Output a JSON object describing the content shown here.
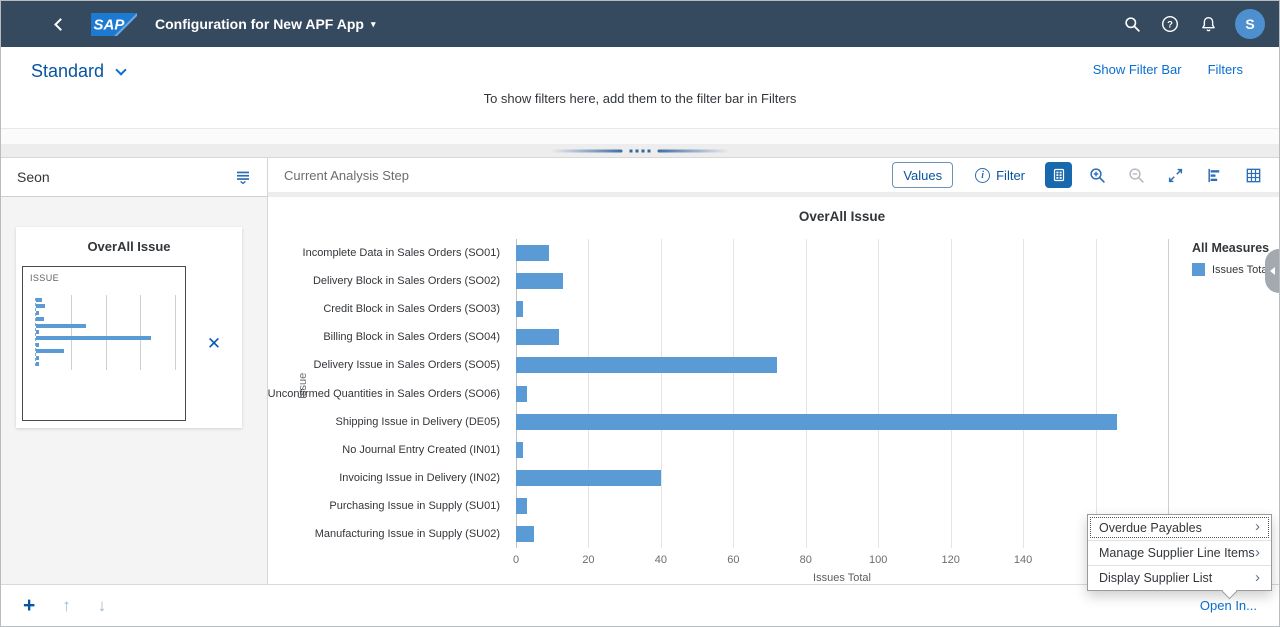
{
  "shell": {
    "title": "Configuration for New APF App",
    "logo_text": "SAP",
    "avatar_initial": "S"
  },
  "variant_bar": {
    "variant_title": "Standard",
    "show_filter_bar_label": "Show Filter Bar",
    "filters_label": "Filters",
    "hint": "To show filters here, add them to the filter bar in Filters"
  },
  "left_panel": {
    "path_title": "Seon",
    "step_card": {
      "title": "OverAll Issue",
      "thumbnail_label": "ISSUE"
    }
  },
  "analysis": {
    "toolbar_title": "Current Analysis Step",
    "values_button_label": "Values",
    "filter_label": "Filter",
    "icons": [
      "legend-toggle-icon",
      "zoom-in-icon",
      "zoom-out-icon",
      "fullscreen-icon",
      "bar-chart-icon",
      "table-view-icon"
    ]
  },
  "footer": {
    "open_in_label": "Open In..."
  },
  "open_in_menu": {
    "items": [
      "Overdue Payables",
      "Manage Supplier Line Items",
      "Display Supplier List"
    ]
  },
  "chart_data": {
    "type": "bar",
    "orientation": "horizontal",
    "title": "OverAll Issue",
    "categories": [
      "Incomplete Data in Sales Orders (SO01)",
      "Delivery Block in Sales Orders (SO02)",
      "Credit Block in Sales Orders (SO03)",
      "Billing Block in Sales Orders (SO04)",
      "Delivery Issue in Sales Orders (SO05)",
      "Unconfirmed Quantities in Sales Orders (SO06)",
      "Shipping Issue in Delivery (DE05)",
      "No Journal Entry Created (IN01)",
      "Invoicing Issue in Delivery (IN02)",
      "Purchasing Issue in Supply (SU01)",
      "Manufacturing Issue in Supply (SU02)"
    ],
    "values": [
      9,
      13,
      2,
      12,
      72,
      3,
      166,
      2,
      40,
      3,
      5
    ],
    "series_name": "Issues Total",
    "legend_title": "All Measures",
    "legend_position": "right",
    "xlabel": "Issues Total",
    "ylabel": "Issue",
    "xlim": [
      0,
      180
    ],
    "xticks": [
      0,
      20,
      40,
      60,
      80,
      100,
      120,
      140
    ],
    "grid_step": 20,
    "grid": true,
    "bar_color": "#5b9bd5",
    "mini_xlim": [
      0,
      200
    ],
    "mini_grid_step": 50
  },
  "colors": {
    "shell_bg": "#354a5f",
    "accent": "#0a6ed1",
    "bar": "#5b9bd5"
  }
}
